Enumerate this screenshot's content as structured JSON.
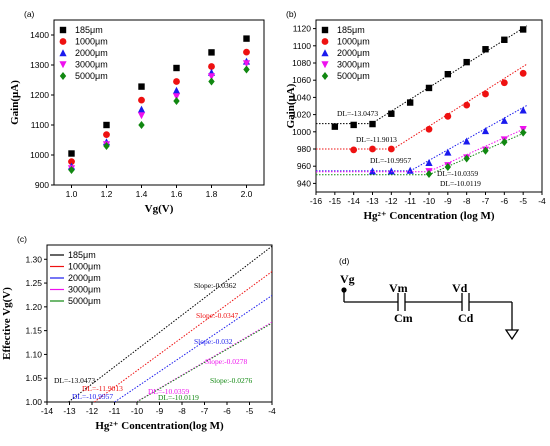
{
  "chart_data": [
    {
      "panel": "(a)",
      "type": "scatter",
      "xlabel": "Vg(V)",
      "ylabel": "Gain(μA)",
      "xlim": [
        0.9,
        2.1
      ],
      "ylim": [
        900,
        1450
      ],
      "xticks": [
        "1.0",
        "1.2",
        "1.4",
        "1.6",
        "1.8",
        "2.0"
      ],
      "yticks": [
        "900",
        "1000",
        "1100",
        "1200",
        "1300",
        "1400"
      ],
      "legend": "top-left",
      "series": [
        {
          "name": "185μm",
          "color": "#000000",
          "marker": "square",
          "x": [
            1.0,
            1.2,
            1.4,
            1.6,
            1.8,
            2.0
          ],
          "y": [
            1005,
            1100,
            1228,
            1290,
            1342,
            1388
          ]
        },
        {
          "name": "1000μm",
          "color": "#ee1111",
          "marker": "circle",
          "x": [
            1.0,
            1.2,
            1.4,
            1.6,
            1.8,
            2.0
          ],
          "y": [
            978,
            1068,
            1183,
            1245,
            1295,
            1343
          ]
        },
        {
          "name": "2000μm",
          "color": "#1a1aee",
          "marker": "triangle",
          "x": [
            1.0,
            1.2,
            1.4,
            1.6,
            1.8,
            2.0
          ],
          "y": [
            962,
            1043,
            1152,
            1215,
            1275,
            1312
          ]
        },
        {
          "name": "3000μm",
          "color": "#ee11ee",
          "marker": "tridown",
          "x": [
            1.0,
            1.2,
            1.4,
            1.6,
            1.8,
            2.0
          ],
          "y": [
            955,
            1035,
            1132,
            1195,
            1262,
            1305
          ]
        },
        {
          "name": "5000μm",
          "color": "#118811",
          "marker": "diamond",
          "x": [
            1.0,
            1.2,
            1.4,
            1.6,
            1.8,
            2.0
          ],
          "y": [
            950,
            1030,
            1100,
            1180,
            1245,
            1285
          ]
        }
      ]
    },
    {
      "panel": "(b)",
      "type": "scatter",
      "xlabel": "Hg²⁺ Concentration (log M)",
      "ylabel": "Gain(μA)",
      "xlim": [
        -16,
        -4
      ],
      "ylim": [
        930,
        1130
      ],
      "xticks": [
        "-16",
        "-15",
        "-14",
        "-13",
        "-12",
        "-11",
        "-10",
        "-9",
        "-8",
        "-7",
        "-6",
        "-5",
        "-4"
      ],
      "yticks": [
        "940",
        "960",
        "980",
        "1000",
        "1020",
        "1040",
        "1060",
        "1080",
        "1100",
        "1120"
      ],
      "legend": "top-left",
      "series": [
        {
          "name": "185μm",
          "color": "#000000",
          "marker": "square",
          "x": [
            -15,
            -14,
            -13,
            -12,
            -11,
            -10,
            -9,
            -8,
            -7,
            -6,
            -5
          ],
          "y": [
            1006,
            1008,
            1009,
            1021,
            1034,
            1051,
            1067,
            1081,
            1096,
            1107,
            1119
          ]
        },
        {
          "name": "1000μm",
          "color": "#ee1111",
          "marker": "circle",
          "x": [
            -14,
            -13,
            -12,
            -10,
            -9,
            -8,
            -7,
            -6,
            -5
          ],
          "y": [
            979,
            980,
            980,
            1003,
            1018,
            1031,
            1044,
            1057,
            1068
          ]
        },
        {
          "name": "2000μm",
          "color": "#1a1aee",
          "marker": "triangle",
          "x": [
            -13,
            -12,
            -11,
            -10,
            -9,
            -8,
            -7,
            -6,
            -5
          ],
          "y": [
            954,
            954,
            955,
            964,
            976,
            989,
            1001,
            1013,
            1025
          ]
        },
        {
          "name": "3000μm",
          "color": "#ee11ee",
          "marker": "tridown",
          "x": [
            -10,
            -9,
            -8,
            -7,
            -6,
            -5
          ],
          "y": [
            954,
            961,
            970,
            979,
            991,
            1003
          ]
        },
        {
          "name": "5000μm",
          "color": "#118811",
          "marker": "diamond",
          "x": [
            -10,
            -9,
            -8,
            -7,
            -6,
            -5
          ],
          "y": [
            951,
            959,
            969,
            978,
            988,
            999
          ]
        }
      ],
      "annotations": [
        {
          "text": "DL=-13.0473",
          "color": "#000000"
        },
        {
          "text": "DL=-11.9013",
          "color": "#000000"
        },
        {
          "text": "DL=-10.9957",
          "color": "#000000"
        },
        {
          "text": "DL=-10.0359",
          "color": "#000000"
        },
        {
          "text": "DL=-10.0119",
          "color": "#000000"
        }
      ]
    },
    {
      "panel": "(c)",
      "type": "line",
      "xlabel": "Hg²⁺ Concentration(log M)",
      "ylabel": "Effective Vg(V)",
      "xlim": [
        -14,
        -4
      ],
      "ylim": [
        1.0,
        1.33
      ],
      "xticks": [
        "-14",
        "-13",
        "-12",
        "-11",
        "-10",
        "-9",
        "-8",
        "-7",
        "-6",
        "-5",
        "-4"
      ],
      "yticks": [
        "1.00",
        "1.05",
        "1.10",
        "1.15",
        "1.20",
        "1.25",
        "1.30"
      ],
      "legend": "top-left",
      "series": [
        {
          "name": "185μm",
          "color": "#000000",
          "x": [
            -13.0473,
            -4.0
          ],
          "y": [
            1.0,
            1.3275
          ]
        },
        {
          "name": "1000μm",
          "color": "#ee1111",
          "x": [
            -11.9013,
            -4.0
          ],
          "y": [
            1.0,
            1.2742
          ]
        },
        {
          "name": "2000μm",
          "color": "#1a1aee",
          "x": [
            -10.9957,
            -4.0
          ],
          "y": [
            1.0,
            1.2239
          ]
        },
        {
          "name": "3000μm",
          "color": "#ee11ee",
          "x": [
            -10.0359,
            -4.0
          ],
          "y": [
            1.0,
            1.1678
          ]
        },
        {
          "name": "5000μm",
          "color": "#118811",
          "x": [
            -10.0119,
            -4.0
          ],
          "y": [
            1.0,
            1.1659
          ]
        }
      ],
      "annotations": [
        {
          "text": "Slope:-0.0362",
          "color": "#000000"
        },
        {
          "text": "Slope:-0.0347",
          "color": "#ee1111"
        },
        {
          "text": "Slope:-0.032",
          "color": "#1a1aee"
        },
        {
          "text": "Slope:-0.0278",
          "color": "#ee11ee"
        },
        {
          "text": "Slope:-0.0276",
          "color": "#118811"
        },
        {
          "text": "DL=-13.0473",
          "color": "#000000"
        },
        {
          "text": "DL=-11.9013",
          "color": "#ee1111"
        },
        {
          "text": "DL=-10.9957",
          "color": "#1a1aee"
        },
        {
          "text": "DL=-10.0359",
          "color": "#ee11ee"
        },
        {
          "text": "DL=-10.0119",
          "color": "#118811"
        }
      ]
    },
    {
      "panel": "(d)",
      "type": "diagram",
      "labels": [
        "Vg",
        "Vm",
        "Cm",
        "Vd",
        "Cd"
      ]
    }
  ]
}
